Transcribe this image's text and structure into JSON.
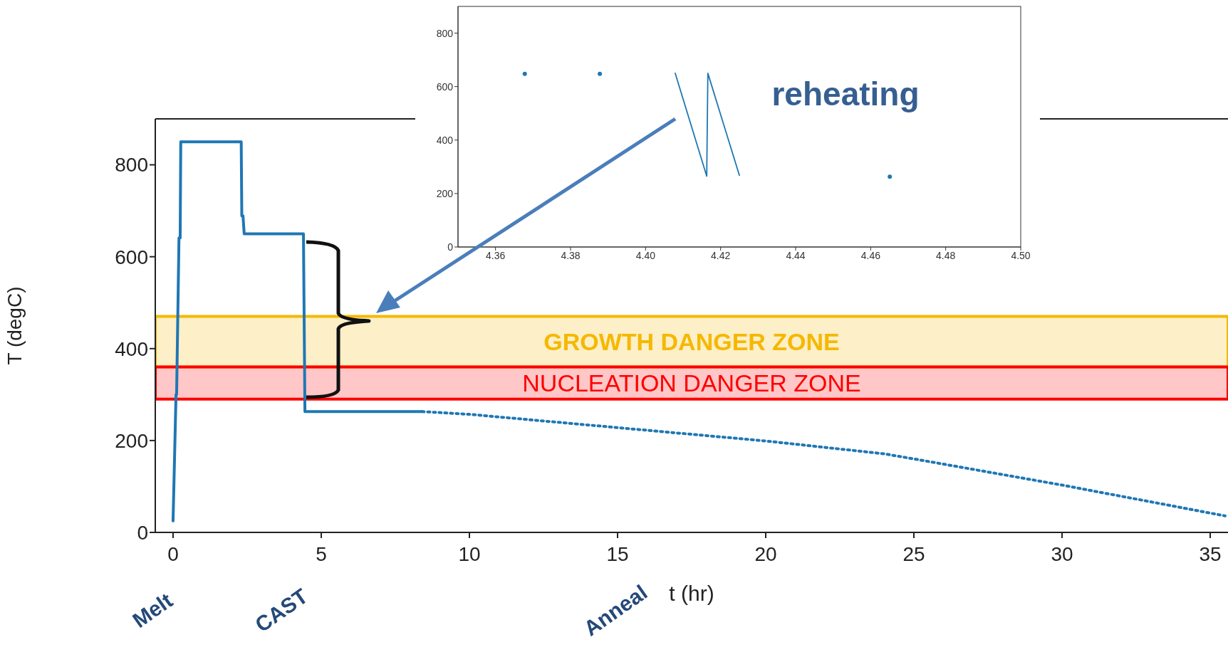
{
  "chart_data": [
    {
      "type": "line",
      "xlabel": "t (hr)",
      "ylabel": "T (degC)",
      "xlim": [
        -0.6,
        35.6
      ],
      "ylim": [
        0,
        900
      ],
      "xticks": [
        0,
        5,
        10,
        15,
        20,
        25,
        30,
        35
      ],
      "yticks": [
        0,
        200,
        400,
        600,
        800
      ],
      "series": [
        {
          "color": "#1f77b4",
          "line_style": "solid",
          "x": [
            0,
            0.1,
            0.12,
            0.2,
            0.24,
            0.26,
            2.3,
            2.32,
            2.36,
            2.4,
            4.4,
            4.45,
            8.4
          ],
          "values": [
            25,
            300,
            300,
            641,
            641,
            850,
            850,
            689,
            689,
            650,
            650,
            263,
            263
          ]
        },
        {
          "color": "#1f77b4",
          "line_style": "dotted",
          "x": [
            8.4,
            10,
            15,
            20,
            24,
            25,
            30,
            35.5
          ],
          "values": [
            263,
            257,
            228,
            199,
            171,
            160,
            103,
            36
          ]
        }
      ],
      "bands": [
        {
          "axis": "y",
          "from": 360,
          "to": 470,
          "label": "GROWTH DANGER ZONE",
          "color": "#f5b800"
        },
        {
          "axis": "y",
          "from": 290,
          "to": 360,
          "label": "NUCLEATION DANGER ZONE",
          "color": "#ff0000"
        }
      ],
      "annotations": [
        "Melt",
        "CAST",
        "Anneal"
      ]
    },
    {
      "type": "line",
      "xlim": [
        4.35,
        4.5
      ],
      "ylim": [
        0,
        900
      ],
      "xticks": [
        4.36,
        4.38,
        {
          "value": 4.4,
          "label": "4.40"
        },
        4.42,
        4.44,
        4.46,
        4.48,
        {
          "value": 4.5,
          "label": "4.50"
        }
      ],
      "yticks": [
        0,
        200,
        400,
        600,
        800
      ],
      "series": [
        {
          "color": "#1f77b4",
          "x": [
            4.4079,
            4.4163,
            4.4166,
            4.425
          ],
          "values": [
            650,
            265,
            650,
            268
          ]
        },
        {
          "type": "scatter",
          "color": "#1f77b4",
          "x": [
            4.3678,
            4.3878,
            4.4651
          ],
          "values": [
            648,
            648,
            263
          ]
        }
      ],
      "annotations": [
        "reheating"
      ]
    }
  ]
}
